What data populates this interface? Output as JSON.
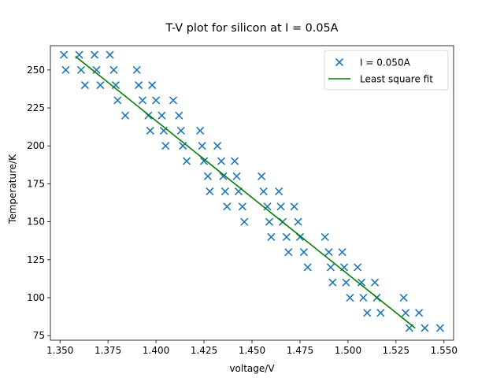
{
  "chart_data": {
    "type": "scatter",
    "title": "T-V plot for silicon at I = 0.05A",
    "xlabel": "voltage/V",
    "ylabel": "Temperature/K",
    "xlim": [
      1.345,
      1.555
    ],
    "ylim": [
      72,
      266
    ],
    "xticks": [
      1.35,
      1.375,
      1.4,
      1.425,
      1.45,
      1.475,
      1.5,
      1.525,
      1.55
    ],
    "xtick_labels": [
      "1.350",
      "1.375",
      "1.400",
      "1.425",
      "1.450",
      "1.475",
      "1.500",
      "1.525",
      "1.550"
    ],
    "yticks": [
      75,
      100,
      125,
      150,
      175,
      200,
      225,
      250
    ],
    "ytick_labels": [
      "75",
      "100",
      "125",
      "150",
      "175",
      "200",
      "225",
      "250"
    ],
    "legend_position": "top-right",
    "series": [
      {
        "name": "I = 0.050A",
        "kind": "scatter",
        "marker": "x",
        "color": "#1f77b4",
        "points": [
          [
            1.352,
            260
          ],
          [
            1.353,
            250
          ],
          [
            1.36,
            260
          ],
          [
            1.361,
            250
          ],
          [
            1.363,
            240
          ],
          [
            1.368,
            260
          ],
          [
            1.369,
            250
          ],
          [
            1.371,
            240
          ],
          [
            1.376,
            260
          ],
          [
            1.378,
            250
          ],
          [
            1.379,
            240
          ],
          [
            1.38,
            230
          ],
          [
            1.384,
            220
          ],
          [
            1.39,
            250
          ],
          [
            1.391,
            240
          ],
          [
            1.393,
            230
          ],
          [
            1.396,
            220
          ],
          [
            1.397,
            210
          ],
          [
            1.398,
            240
          ],
          [
            1.4,
            230
          ],
          [
            1.403,
            220
          ],
          [
            1.404,
            210
          ],
          [
            1.405,
            200
          ],
          [
            1.409,
            230
          ],
          [
            1.412,
            220
          ],
          [
            1.413,
            210
          ],
          [
            1.414,
            200
          ],
          [
            1.416,
            190
          ],
          [
            1.423,
            210
          ],
          [
            1.424,
            200
          ],
          [
            1.425,
            190
          ],
          [
            1.427,
            180
          ],
          [
            1.428,
            170
          ],
          [
            1.432,
            200
          ],
          [
            1.434,
            190
          ],
          [
            1.435,
            180
          ],
          [
            1.436,
            170
          ],
          [
            1.437,
            160
          ],
          [
            1.441,
            190
          ],
          [
            1.442,
            180
          ],
          [
            1.443,
            170
          ],
          [
            1.445,
            160
          ],
          [
            1.446,
            150
          ],
          [
            1.455,
            180
          ],
          [
            1.456,
            170
          ],
          [
            1.458,
            160
          ],
          [
            1.459,
            150
          ],
          [
            1.46,
            140
          ],
          [
            1.464,
            170
          ],
          [
            1.465,
            160
          ],
          [
            1.466,
            150
          ],
          [
            1.468,
            140
          ],
          [
            1.469,
            130
          ],
          [
            1.472,
            160
          ],
          [
            1.474,
            150
          ],
          [
            1.475,
            140
          ],
          [
            1.477,
            130
          ],
          [
            1.479,
            120
          ],
          [
            1.488,
            140
          ],
          [
            1.49,
            130
          ],
          [
            1.491,
            120
          ],
          [
            1.492,
            110
          ],
          [
            1.497,
            130
          ],
          [
            1.498,
            120
          ],
          [
            1.499,
            110
          ],
          [
            1.501,
            100
          ],
          [
            1.505,
            120
          ],
          [
            1.507,
            110
          ],
          [
            1.508,
            100
          ],
          [
            1.51,
            90
          ],
          [
            1.514,
            110
          ],
          [
            1.515,
            100
          ],
          [
            1.517,
            90
          ],
          [
            1.529,
            100
          ],
          [
            1.53,
            90
          ],
          [
            1.532,
            80
          ],
          [
            1.537,
            90
          ],
          [
            1.54,
            80
          ],
          [
            1.548,
            80
          ]
        ]
      },
      {
        "name": "Least square fit",
        "kind": "line",
        "color": "#008000",
        "points": [
          [
            1.358,
            259
          ],
          [
            1.535,
            80
          ]
        ]
      }
    ]
  }
}
